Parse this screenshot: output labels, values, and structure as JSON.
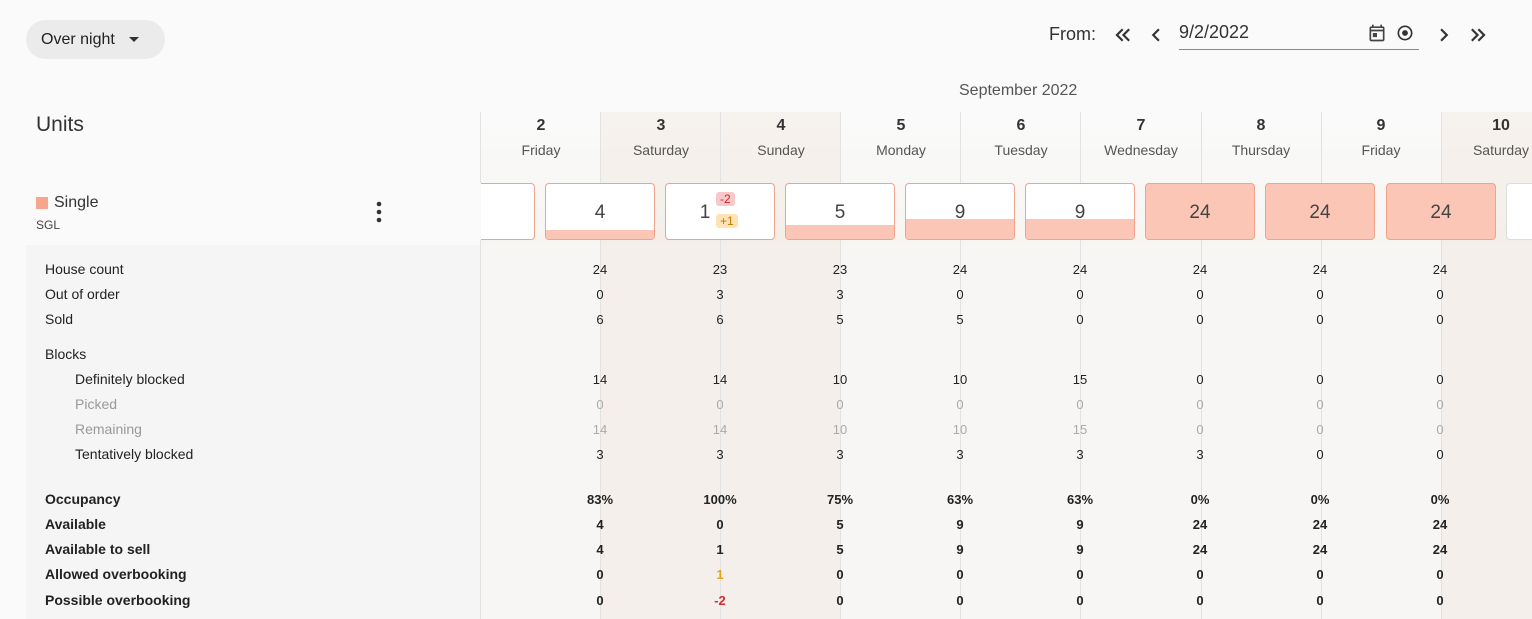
{
  "toolbar": {
    "mode_label": "Over night",
    "from_label": "From:",
    "date_value": "9/2/2022"
  },
  "calendar": {
    "month_label": "September 2022",
    "days": [
      {
        "num": "2",
        "name": "Friday"
      },
      {
        "num": "3",
        "name": "Saturday"
      },
      {
        "num": "4",
        "name": "Sunday"
      },
      {
        "num": "5",
        "name": "Monday"
      },
      {
        "num": "6",
        "name": "Tuesday"
      },
      {
        "num": "7",
        "name": "Wednesday"
      },
      {
        "num": "8",
        "name": "Thursday"
      },
      {
        "num": "9",
        "name": "Friday"
      },
      {
        "num": "10",
        "name": "Saturday"
      }
    ]
  },
  "units": {
    "title": "Units",
    "unit_name": "Single",
    "unit_code": "SGL",
    "unit_color": "#f8a58d"
  },
  "availability_boxes": [
    {
      "value": "4",
      "fill_fraction": 0.17
    },
    {
      "value": "1",
      "fill_fraction": 0.0,
      "badge_neg": "-2",
      "badge_pos": "+1"
    },
    {
      "value": "5",
      "fill_fraction": 0.25
    },
    {
      "value": "9",
      "fill_fraction": 0.37
    },
    {
      "value": "9",
      "fill_fraction": 0.37
    },
    {
      "value": "24",
      "fill_fraction": 1.0
    },
    {
      "value": "24",
      "fill_fraction": 1.0
    },
    {
      "value": "24",
      "fill_fraction": 1.0
    }
  ],
  "rows": {
    "house_count": {
      "label": "House count",
      "values": [
        "24",
        "23",
        "23",
        "24",
        "24",
        "24",
        "24",
        "24"
      ]
    },
    "out_of_order": {
      "label": "Out of order",
      "values": [
        "0",
        "3",
        "3",
        "0",
        "0",
        "0",
        "0",
        "0"
      ]
    },
    "sold": {
      "label": "Sold",
      "values": [
        "6",
        "6",
        "5",
        "5",
        "0",
        "0",
        "0",
        "0"
      ]
    },
    "blocks": {
      "label": "Blocks"
    },
    "definitely_blocked": {
      "label": "Definitely blocked",
      "values": [
        "14",
        "14",
        "10",
        "10",
        "15",
        "0",
        "0",
        "0"
      ]
    },
    "picked": {
      "label": "Picked",
      "values": [
        "0",
        "0",
        "0",
        "0",
        "0",
        "0",
        "0",
        "0"
      ]
    },
    "remaining": {
      "label": "Remaining",
      "values": [
        "14",
        "14",
        "10",
        "10",
        "15",
        "0",
        "0",
        "0"
      ]
    },
    "tentatively_blocked": {
      "label": "Tentatively blocked",
      "values": [
        "3",
        "3",
        "3",
        "3",
        "3",
        "3",
        "0",
        "0"
      ]
    },
    "occupancy": {
      "label": "Occupancy",
      "values": [
        "83%",
        "100%",
        "75%",
        "63%",
        "63%",
        "0%",
        "0%",
        "0%"
      ]
    },
    "available": {
      "label": "Available",
      "values": [
        "4",
        "0",
        "5",
        "9",
        "9",
        "24",
        "24",
        "24"
      ]
    },
    "available_to_sell": {
      "label": "Available to sell",
      "values": [
        "4",
        "1",
        "5",
        "9",
        "9",
        "24",
        "24",
        "24"
      ]
    },
    "allowed_overbooking": {
      "label": "Allowed overbooking",
      "values": [
        "0",
        "1",
        "0",
        "0",
        "0",
        "0",
        "0",
        "0"
      ]
    },
    "possible_overbooking": {
      "label": "Possible overbooking",
      "values": [
        "0",
        "-2",
        "0",
        "0",
        "0",
        "0",
        "0",
        "0"
      ]
    }
  },
  "colors": {
    "accent_fill": "#fbc6b6",
    "accent_border": "#f1a28a",
    "warning": "#e8a317",
    "negative": "#d32f2f"
  }
}
